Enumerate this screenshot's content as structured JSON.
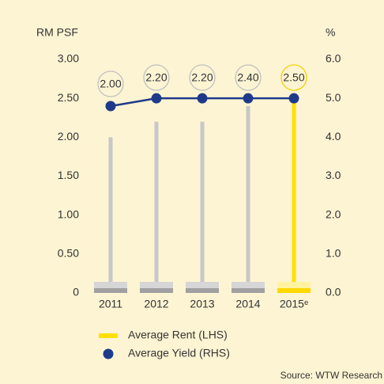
{
  "chart_data": {
    "type": "bar",
    "y_label": "RM PSF",
    "y2_label": "%",
    "categories": [
      "2011",
      "2012",
      "2013",
      "2014",
      "2015ᵉ"
    ],
    "series": [
      {
        "name": "Average Rent (LHS)",
        "type": "bar",
        "color": "#ffe000",
        "colors": [
          "#c8c8c8",
          "#c8c8c8",
          "#c8c8c8",
          "#c8c8c8",
          "#ffe000"
        ],
        "values": [
          2.0,
          2.2,
          2.2,
          2.4,
          2.5
        ],
        "value_labels": [
          "2.00",
          "2.20",
          "2.20",
          "2.40",
          "2.50"
        ]
      },
      {
        "name": "Average Yield (RHS)",
        "type": "line",
        "axis": "y2",
        "color": "#1f3a8a",
        "values": [
          4.8,
          5.0,
          5.0,
          5.0,
          5.0
        ]
      }
    ],
    "ylim": [
      0,
      3
    ],
    "yticks": [
      {
        "value": 0,
        "label": "0"
      },
      {
        "value": 0.5,
        "label": "0.50"
      },
      {
        "value": 1,
        "label": "1.00"
      },
      {
        "value": 1.5,
        "label": "1.50"
      },
      {
        "value": 2,
        "label": "2.00"
      },
      {
        "value": 2.5,
        "label": "2.50"
      },
      {
        "value": 3,
        "label": "3.00"
      }
    ],
    "y2lim": [
      0,
      6
    ],
    "y2ticks": [
      {
        "value": 0,
        "label": "0.0"
      },
      {
        "value": 1,
        "label": "1.0"
      },
      {
        "value": 2,
        "label": "2.0"
      },
      {
        "value": 3,
        "label": "3.0"
      },
      {
        "value": 4,
        "label": "4.0"
      },
      {
        "value": 5,
        "label": "5.0"
      },
      {
        "value": 6,
        "label": "6.0"
      }
    ],
    "source": "Source: WTW Research"
  }
}
